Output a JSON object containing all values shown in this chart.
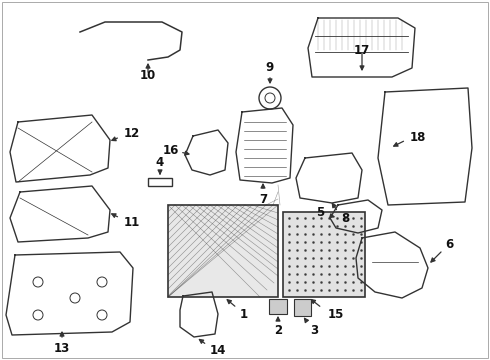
{
  "bg_color": "#ffffff",
  "line_color": "#333333",
  "label_color": "#111111"
}
